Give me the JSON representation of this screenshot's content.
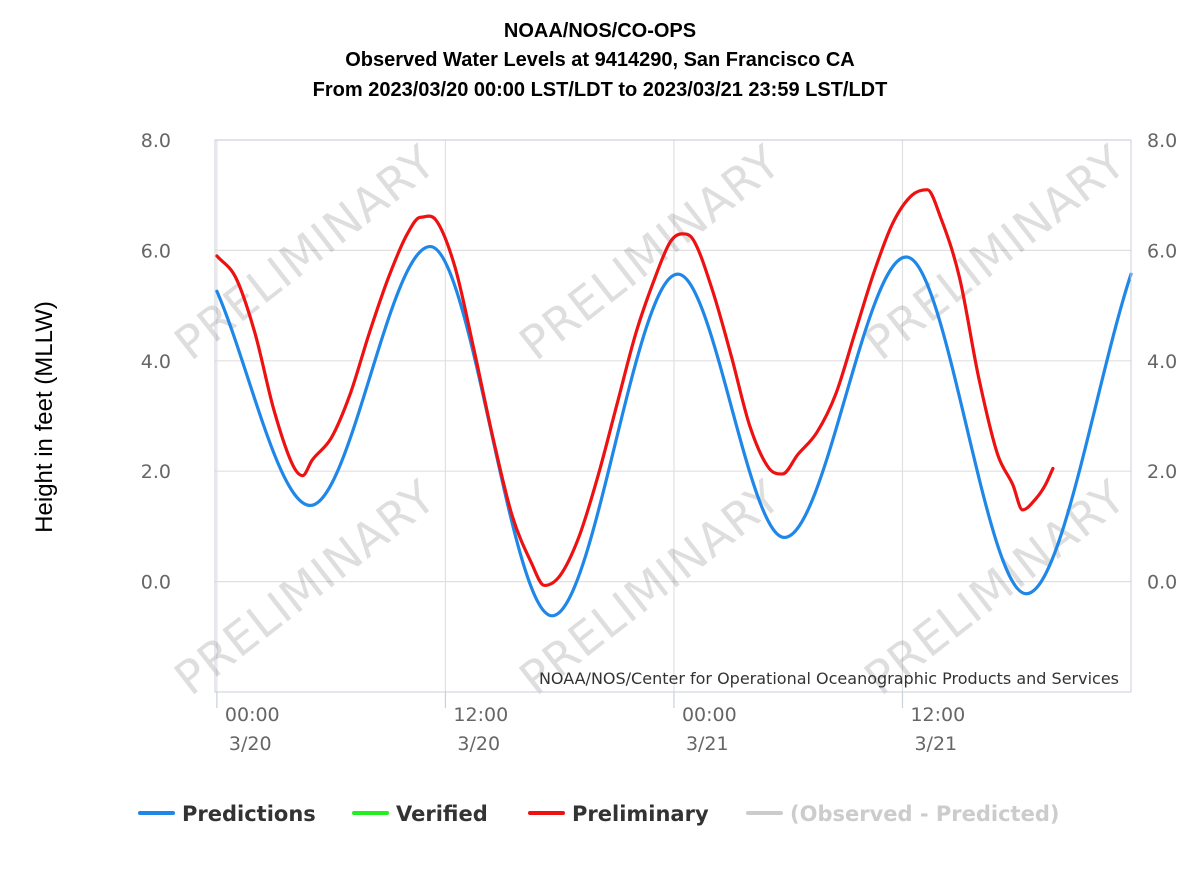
{
  "chart_data": {
    "type": "line",
    "title_lines": [
      "NOAA/NOS/CO-OPS",
      "Observed Water Levels at 9414290, San Francisco CA",
      "From 2023/03/20 00:00 LST/LDT to 2023/03/21 23:59 LST/LDT"
    ],
    "ylabel": "Height in feet (MLLW)",
    "credit": "NOAA/NOS/Center for Operational Oceanographic Products and Services",
    "watermark_text": "PRELIMINARY",
    "x_unit": "hours from 2023/03/20 00:00",
    "xlim": [
      -0.1,
      48
    ],
    "ylim": [
      -2,
      8
    ],
    "grid": true,
    "legend_placement": "bottom",
    "y_ticks": [
      {
        "value": 0,
        "label": "0.0"
      },
      {
        "value": 2,
        "label": "2.0"
      },
      {
        "value": 4,
        "label": "4.0"
      },
      {
        "value": 6,
        "label": "6.0"
      },
      {
        "value": 8,
        "label": "8.0"
      }
    ],
    "x_ticks": [
      {
        "value": 0,
        "time": "00:00",
        "date": "3/20"
      },
      {
        "value": 12,
        "time": "12:00",
        "date": "3/20"
      },
      {
        "value": 24,
        "time": "00:00",
        "date": "3/21"
      },
      {
        "value": 36,
        "time": "12:00",
        "date": "3/21"
      }
    ],
    "series": [
      {
        "name": "Predictions",
        "color": "#1f87e8",
        "points": [
          [
            0,
            5.26
          ],
          [
            4.9,
            1.38
          ],
          [
            11.2,
            6.07
          ],
          [
            17.6,
            -0.62
          ],
          [
            24.2,
            5.57
          ],
          [
            29.8,
            0.8
          ],
          [
            36.2,
            5.88
          ],
          [
            42.5,
            -0.22
          ],
          [
            48,
            5.57
          ]
        ]
      },
      {
        "name": "Verified",
        "color": "#22ee22",
        "points": []
      },
      {
        "name": "Preliminary",
        "color": "#ee1111",
        "points": [
          [
            0,
            5.9
          ],
          [
            1.0,
            5.5
          ],
          [
            2.0,
            4.5
          ],
          [
            3.0,
            3.1
          ],
          [
            4.0,
            2.1
          ],
          [
            4.5,
            1.92
          ],
          [
            5.0,
            2.2
          ],
          [
            6.0,
            2.6
          ],
          [
            7.0,
            3.4
          ],
          [
            8.0,
            4.5
          ],
          [
            9.0,
            5.5
          ],
          [
            10.0,
            6.3
          ],
          [
            10.7,
            6.6
          ],
          [
            11.5,
            6.55
          ],
          [
            12.5,
            5.7
          ],
          [
            13.5,
            4.2
          ],
          [
            14.5,
            2.6
          ],
          [
            15.5,
            1.2
          ],
          [
            16.5,
            0.35
          ],
          [
            17.2,
            -0.07
          ],
          [
            18.0,
            0.1
          ],
          [
            19.0,
            0.8
          ],
          [
            20.0,
            1.9
          ],
          [
            21.0,
            3.2
          ],
          [
            22.0,
            4.5
          ],
          [
            23.0,
            5.5
          ],
          [
            23.8,
            6.15
          ],
          [
            24.4,
            6.3
          ],
          [
            25.0,
            6.2
          ],
          [
            26.0,
            5.3
          ],
          [
            27.0,
            4.1
          ],
          [
            28.0,
            2.8
          ],
          [
            29.0,
            2.05
          ],
          [
            29.7,
            1.95
          ],
          [
            30.5,
            2.3
          ],
          [
            31.5,
            2.7
          ],
          [
            32.5,
            3.4
          ],
          [
            33.5,
            4.5
          ],
          [
            34.5,
            5.6
          ],
          [
            35.5,
            6.5
          ],
          [
            36.5,
            7.0
          ],
          [
            37.3,
            7.1
          ],
          [
            38.0,
            6.6
          ],
          [
            39.0,
            5.5
          ],
          [
            40.0,
            3.7
          ],
          [
            41.0,
            2.3
          ],
          [
            41.8,
            1.75
          ],
          [
            42.3,
            1.3
          ],
          [
            43.0,
            1.5
          ],
          [
            43.5,
            1.75
          ],
          [
            43.9,
            2.05
          ]
        ]
      },
      {
        "name": "(Observed - Predicted)",
        "color": "#cccccc",
        "points": []
      }
    ]
  }
}
